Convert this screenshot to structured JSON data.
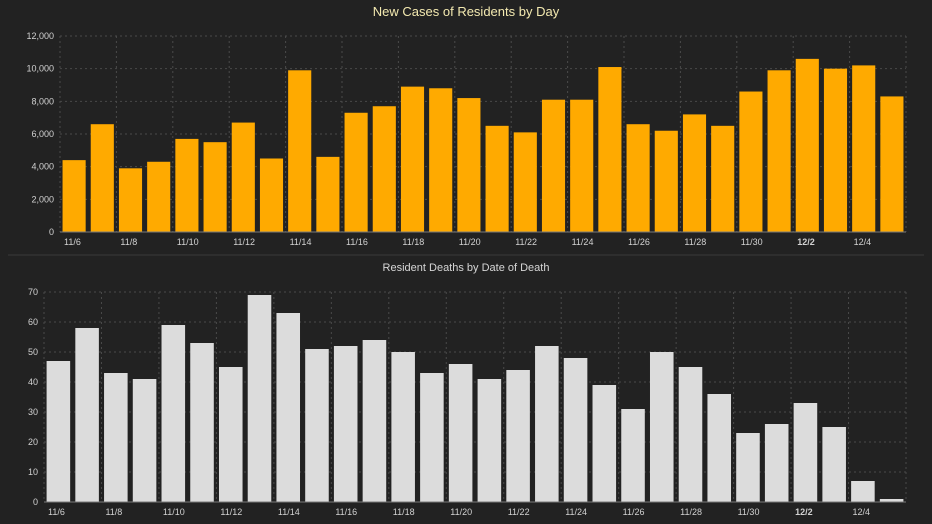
{
  "chart_data": [
    {
      "type": "bar",
      "title": "New Cases of Residents by Day",
      "xlabel": "",
      "ylabel": "",
      "color": "#ffaa00",
      "ylim": [
        0,
        12000
      ],
      "yticks": [
        0,
        2000,
        4000,
        6000,
        8000,
        10000,
        12000
      ],
      "ytick_labels": [
        "0",
        "2,000",
        "4,000",
        "6,000",
        "8,000",
        "10,000",
        "12,000"
      ],
      "grid": true,
      "categories": [
        "11/6",
        "11/7",
        "11/8",
        "11/9",
        "11/10",
        "11/11",
        "11/12",
        "11/13",
        "11/14",
        "11/15",
        "11/16",
        "11/17",
        "11/18",
        "11/19",
        "11/20",
        "11/21",
        "11/22",
        "11/23",
        "11/24",
        "11/25",
        "11/26",
        "11/27",
        "11/28",
        "11/29",
        "11/30",
        "12/1",
        "12/2",
        "12/3",
        "12/4",
        "12/5"
      ],
      "xtick_labels": [
        "11/6",
        "11/8",
        "11/10",
        "11/12",
        "11/14",
        "11/16",
        "11/18",
        "11/20",
        "11/22",
        "11/24",
        "11/26",
        "11/28",
        "11/30",
        "12/2",
        "12/4"
      ],
      "bold_tick": "12/2",
      "values": [
        4400,
        6600,
        3900,
        4300,
        5700,
        5500,
        6700,
        4500,
        9900,
        4600,
        7300,
        7700,
        8900,
        8800,
        8200,
        6500,
        6100,
        8100,
        8100,
        10100,
        6600,
        6200,
        7200,
        6500,
        8600,
        9900,
        10600,
        10000,
        10200,
        8300
      ]
    },
    {
      "type": "bar",
      "title": "Resident Deaths by Date of Death",
      "xlabel": "",
      "ylabel": "",
      "color": "#dcdcdc",
      "ylim": [
        0,
        70
      ],
      "yticks": [
        0,
        10,
        20,
        30,
        40,
        50,
        60,
        70
      ],
      "ytick_labels": [
        "0",
        "10",
        "20",
        "30",
        "40",
        "50",
        "60",
        "70"
      ],
      "grid": true,
      "categories": [
        "11/6",
        "11/7",
        "11/8",
        "11/9",
        "11/10",
        "11/11",
        "11/12",
        "11/13",
        "11/14",
        "11/15",
        "11/16",
        "11/17",
        "11/18",
        "11/19",
        "11/20",
        "11/21",
        "11/22",
        "11/23",
        "11/24",
        "11/25",
        "11/26",
        "11/27",
        "11/28",
        "11/29",
        "11/30",
        "12/1",
        "12/2",
        "12/3",
        "12/4",
        "12/5"
      ],
      "xtick_labels": [
        "11/6",
        "11/8",
        "11/10",
        "11/12",
        "11/14",
        "11/16",
        "11/18",
        "11/20",
        "11/22",
        "11/24",
        "11/26",
        "11/28",
        "11/30",
        "12/2",
        "12/4"
      ],
      "bold_tick": "12/2",
      "values": [
        47,
        58,
        43,
        41,
        59,
        53,
        45,
        69,
        63,
        51,
        52,
        54,
        50,
        43,
        46,
        41,
        44,
        52,
        48,
        39,
        31,
        50,
        45,
        36,
        23,
        26,
        33,
        25,
        7,
        1
      ]
    }
  ]
}
